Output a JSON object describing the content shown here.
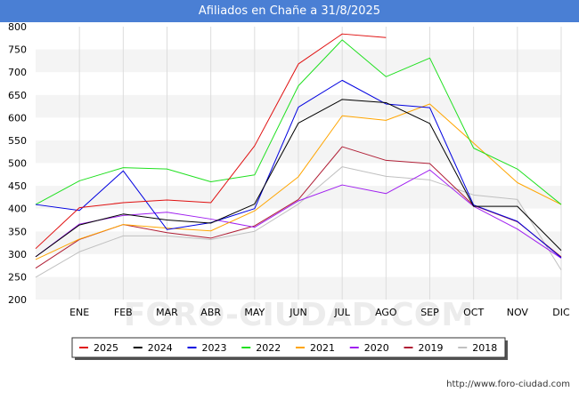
{
  "header": {
    "title": "Afiliados en Chañe a 31/8/2025"
  },
  "footer": {
    "url": "http://www.foro-ciudad.com"
  },
  "watermark": "FORO-CIUDAD.COM",
  "chart_data": {
    "type": "line",
    "title": "Afiliados en Chañe a 31/8/2025",
    "xlabel": "",
    "ylabel": "",
    "ylim": [
      200,
      800
    ],
    "yticks": [
      200,
      250,
      300,
      350,
      400,
      450,
      500,
      550,
      600,
      650,
      700,
      750,
      800
    ],
    "categories": [
      "",
      "ENE",
      "FEB",
      "MAR",
      "ABR",
      "MAY",
      "JUN",
      "JUL",
      "AGO",
      "SEP",
      "OCT",
      "NOV",
      "DIC"
    ],
    "grid": true,
    "legend_position": "bottom",
    "series": [
      {
        "name": "2025",
        "color": "#e01010",
        "values": [
          312,
          402,
          413,
          419,
          413,
          538,
          718,
          784,
          776,
          null,
          null,
          null,
          null
        ]
      },
      {
        "name": "2024",
        "color": "#000000",
        "values": [
          294,
          364,
          388,
          375,
          368,
          410,
          588,
          640,
          633,
          587,
          405,
          405,
          308
        ]
      },
      {
        "name": "2023",
        "color": "#0000e0",
        "values": [
          409,
          396,
          483,
          354,
          369,
          400,
          623,
          682,
          630,
          622,
          408,
          372,
          292
        ]
      },
      {
        "name": "2022",
        "color": "#20e020",
        "values": [
          409,
          461,
          490,
          487,
          459,
          474,
          670,
          771,
          690,
          731,
          533,
          487,
          409
        ]
      },
      {
        "name": "2021",
        "color": "#ffa500",
        "values": [
          288,
          333,
          365,
          357,
          351,
          395,
          470,
          604,
          594,
          630,
          544,
          457,
          409
        ]
      },
      {
        "name": "2020",
        "color": "#a020f0",
        "values": [
          294,
          366,
          385,
          392,
          377,
          359,
          417,
          452,
          433,
          485,
          405,
          355,
          291
        ]
      },
      {
        "name": "2019",
        "color": "#b01e35",
        "values": [
          269,
          332,
          365,
          347,
          335,
          362,
          420,
          536,
          506,
          499,
          407,
          371,
          294
        ]
      },
      {
        "name": "2018",
        "color": "#c0c0c0",
        "values": [
          249,
          305,
          340,
          340,
          332,
          350,
          410,
          492,
          471,
          463,
          430,
          420,
          265
        ]
      }
    ]
  }
}
